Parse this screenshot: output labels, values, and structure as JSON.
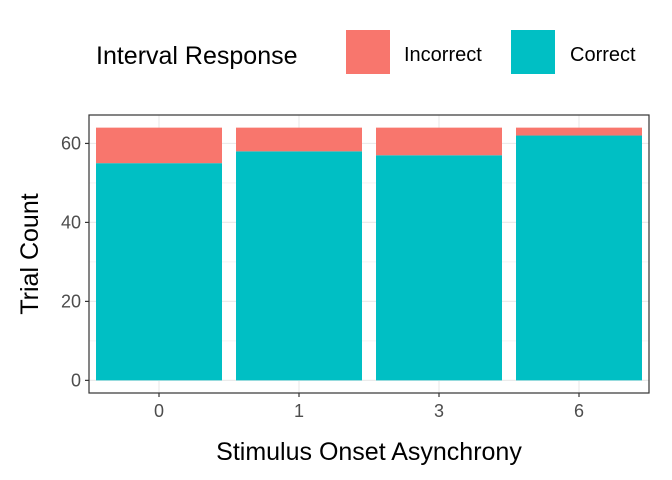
{
  "chart_data": {
    "type": "bar",
    "stacked": true,
    "categories": [
      "0",
      "1",
      "3",
      "6"
    ],
    "series": [
      {
        "name": "Correct",
        "values": [
          55,
          58,
          57,
          62
        ],
        "color": "#00BFC4"
      },
      {
        "name": "Incorrect",
        "values": [
          9,
          6,
          7,
          2
        ],
        "color": "#F8766D"
      }
    ],
    "xlabel": "Stimulus Onset Asynchrony",
    "ylabel": "Trial Count",
    "ylim": [
      -3.2,
      67.2
    ],
    "yticks": [
      0,
      20,
      40,
      60
    ],
    "grid": true,
    "legend": {
      "title": "Interval Response",
      "position": "top",
      "entries": [
        {
          "name": "Incorrect",
          "color": "#F8766D"
        },
        {
          "name": "Correct",
          "color": "#00BFC4"
        }
      ]
    }
  }
}
